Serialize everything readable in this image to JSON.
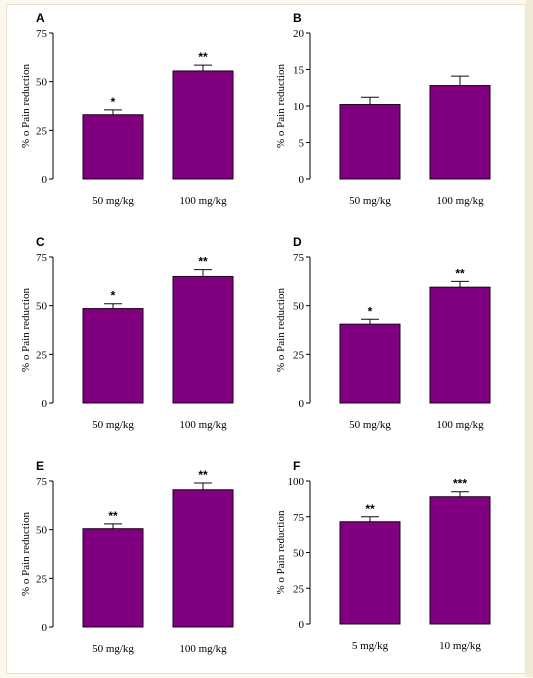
{
  "style": {
    "bar_color": "#800080",
    "bar_edge": "#1a001a",
    "axis_color": "#000000"
  },
  "chart_data": [
    {
      "panel": "A",
      "type": "bar",
      "categories": [
        "50 mg/kg",
        "100 mg/kg"
      ],
      "values": [
        33,
        55.5
      ],
      "errors": [
        2.5,
        3
      ],
      "significance": [
        "*",
        "**"
      ],
      "ylabel": "% o Pain reduction",
      "ylim": [
        0,
        75
      ],
      "yticks": [
        0,
        25,
        50,
        75
      ],
      "ytick_labels": [
        "0",
        "25",
        "50",
        "75"
      ]
    },
    {
      "panel": "B",
      "type": "bar",
      "categories": [
        "50 mg/kg",
        "100 mg/kg"
      ],
      "values": [
        10.2,
        12.8
      ],
      "errors": [
        1.0,
        1.3
      ],
      "significance": [
        "",
        ""
      ],
      "ylabel": "% o Pain reduction",
      "ylim": [
        0,
        20
      ],
      "yticks": [
        0,
        5,
        10,
        15,
        20
      ],
      "ytick_labels": [
        "0",
        "5",
        "10",
        "15",
        "20"
      ]
    },
    {
      "panel": "C",
      "type": "bar",
      "categories": [
        "50 mg/kg",
        "100 mg/kg"
      ],
      "values": [
        48.5,
        65
      ],
      "errors": [
        2.5,
        3.5
      ],
      "significance": [
        "*",
        "**"
      ],
      "ylabel": "% o Pain reduction",
      "ylim": [
        0,
        75
      ],
      "yticks": [
        0,
        25,
        50,
        75
      ],
      "ytick_labels": [
        "0",
        "25",
        "50",
        "75"
      ]
    },
    {
      "panel": "D",
      "type": "bar",
      "categories": [
        "50 mg/kg",
        "100 mg/kg"
      ],
      "values": [
        40.5,
        59.5
      ],
      "errors": [
        2.5,
        3
      ],
      "significance": [
        "*",
        "**"
      ],
      "ylabel": "% o Pain reduction",
      "ylim": [
        0,
        75
      ],
      "yticks": [
        0,
        25,
        50,
        75
      ],
      "ytick_labels": [
        "0",
        "25",
        "50",
        "75"
      ]
    },
    {
      "panel": "E",
      "type": "bar",
      "categories": [
        "50 mg/kg",
        "100 mg/kg"
      ],
      "values": [
        50.5,
        70.5
      ],
      "errors": [
        2.5,
        3.5
      ],
      "significance": [
        "**",
        "**"
      ],
      "ylabel": "% o Pain reduction",
      "ylim": [
        0,
        75
      ],
      "yticks": [
        0,
        25,
        50,
        75
      ],
      "ytick_labels": [
        "0",
        "25",
        "50",
        "75"
      ]
    },
    {
      "panel": "F",
      "type": "bar",
      "categories": [
        "5 mg/kg",
        "10 mg/kg"
      ],
      "values": [
        71.5,
        89
      ],
      "errors": [
        3.5,
        3.5
      ],
      "significance": [
        "**",
        "***"
      ],
      "ylabel": "% o Pain reduction",
      "ylim": [
        0,
        100
      ],
      "yticks": [
        0,
        25,
        50,
        75,
        100
      ],
      "ytick_labels": [
        "0",
        "25",
        "50",
        "75",
        "100"
      ]
    }
  ]
}
